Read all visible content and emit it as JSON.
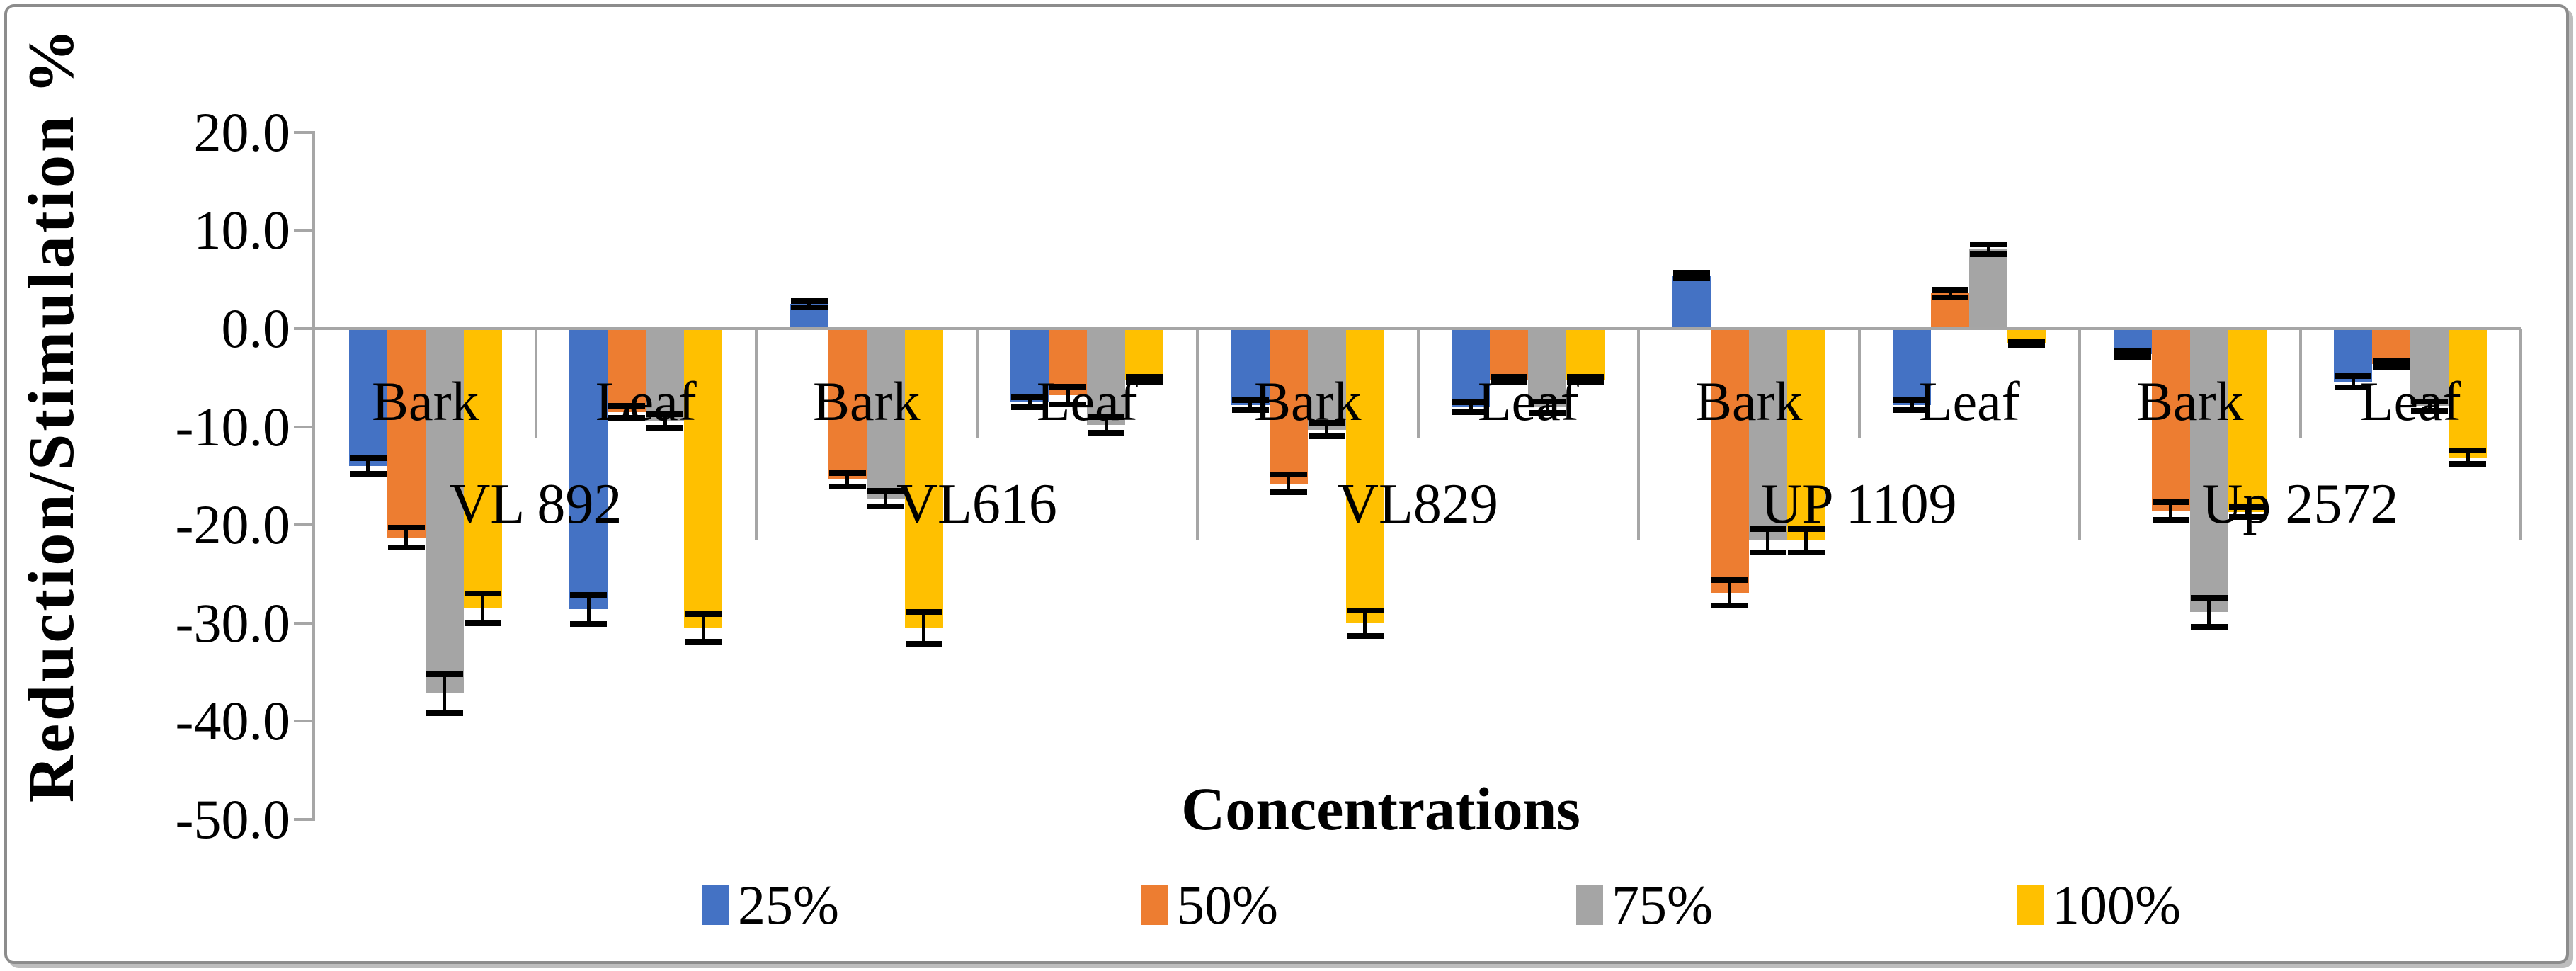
{
  "chart_data": {
    "type": "bar",
    "title": "",
    "ylabel": "Reduction/Stimulation %",
    "xlabel": "Concentrations",
    "ylim": [
      -50,
      20
    ],
    "ytick_values": [
      20,
      10,
      0,
      -10,
      -20,
      -30,
      -40,
      -50
    ],
    "ytick_labels": [
      "20.0",
      "10.0",
      "0.0",
      "-10.0",
      "-20.0",
      "-30.0",
      "-40.0",
      "-50.0"
    ],
    "grid": false,
    "legend_position": "bottom",
    "error_bars": true,
    "series": [
      {
        "name": "25%",
        "color": "#4472C4"
      },
      {
        "name": "50%",
        "color": "#ED7D31"
      },
      {
        "name": "75%",
        "color": "#A5A5A5"
      },
      {
        "name": "100%",
        "color": "#FFC000"
      }
    ],
    "groups": [
      {
        "variety": "VL 892",
        "clusters": [
          {
            "tissue": "Bark",
            "values": [
              -14.0,
              -21.3,
              -37.2,
              -28.5
            ],
            "errors": [
              0.8,
              1.0,
              2.0,
              1.5
            ]
          },
          {
            "tissue": "Leaf",
            "values": [
              -28.6,
              -8.5,
              -9.4,
              -30.5
            ],
            "errors": [
              1.5,
              0.6,
              0.7,
              1.4
            ]
          }
        ]
      },
      {
        "variety": "VL616",
        "clusters": [
          {
            "tissue": "Bark",
            "values": [
              2.5,
              -15.4,
              -17.3,
              -30.5
            ],
            "errors": [
              0.3,
              0.7,
              0.8,
              1.6
            ]
          },
          {
            "tissue": "Leaf",
            "values": [
              -7.5,
              -6.8,
              -9.8,
              -5.2
            ],
            "errors": [
              0.5,
              0.9,
              0.8,
              0.3
            ]
          }
        ]
      },
      {
        "variety": "VL829",
        "clusters": [
          {
            "tissue": "Bark",
            "values": [
              -7.8,
              -15.8,
              -10.3,
              -30.0
            ],
            "errors": [
              0.5,
              0.9,
              0.7,
              1.3
            ]
          },
          {
            "tissue": "Leaf",
            "values": [
              -8.0,
              -5.2,
              -8.0,
              -5.2
            ],
            "errors": [
              0.5,
              0.3,
              0.6,
              0.3
            ]
          }
        ]
      },
      {
        "variety": "UP 1109",
        "clusters": [
          {
            "tissue": "Bark",
            "values": [
              5.4,
              -26.9,
              -21.6,
              -21.6
            ],
            "errors": [
              0.3,
              1.3,
              1.2,
              1.2
            ]
          },
          {
            "tissue": "Leaf",
            "values": [
              -7.8,
              3.6,
              8.1,
              -1.5
            ],
            "errors": [
              0.5,
              0.4,
              0.5,
              0.2
            ]
          }
        ]
      },
      {
        "variety": "Up 2572",
        "clusters": [
          {
            "tissue": "Bark",
            "values": [
              -2.6,
              -18.6,
              -28.9,
              -18.7
            ],
            "errors": [
              0.3,
              0.9,
              1.5,
              0.5
            ]
          },
          {
            "tissue": "Leaf",
            "values": [
              -5.4,
              -3.6,
              -7.9,
              -13.1
            ],
            "errors": [
              0.6,
              0.3,
              0.5,
              0.7
            ]
          }
        ]
      }
    ]
  },
  "colors": {
    "axis": "#A6A6A6",
    "error_bar": "#000000",
    "text": "#000000",
    "background": "#FFFFFF",
    "frame_border": "#8C8C8C"
  }
}
